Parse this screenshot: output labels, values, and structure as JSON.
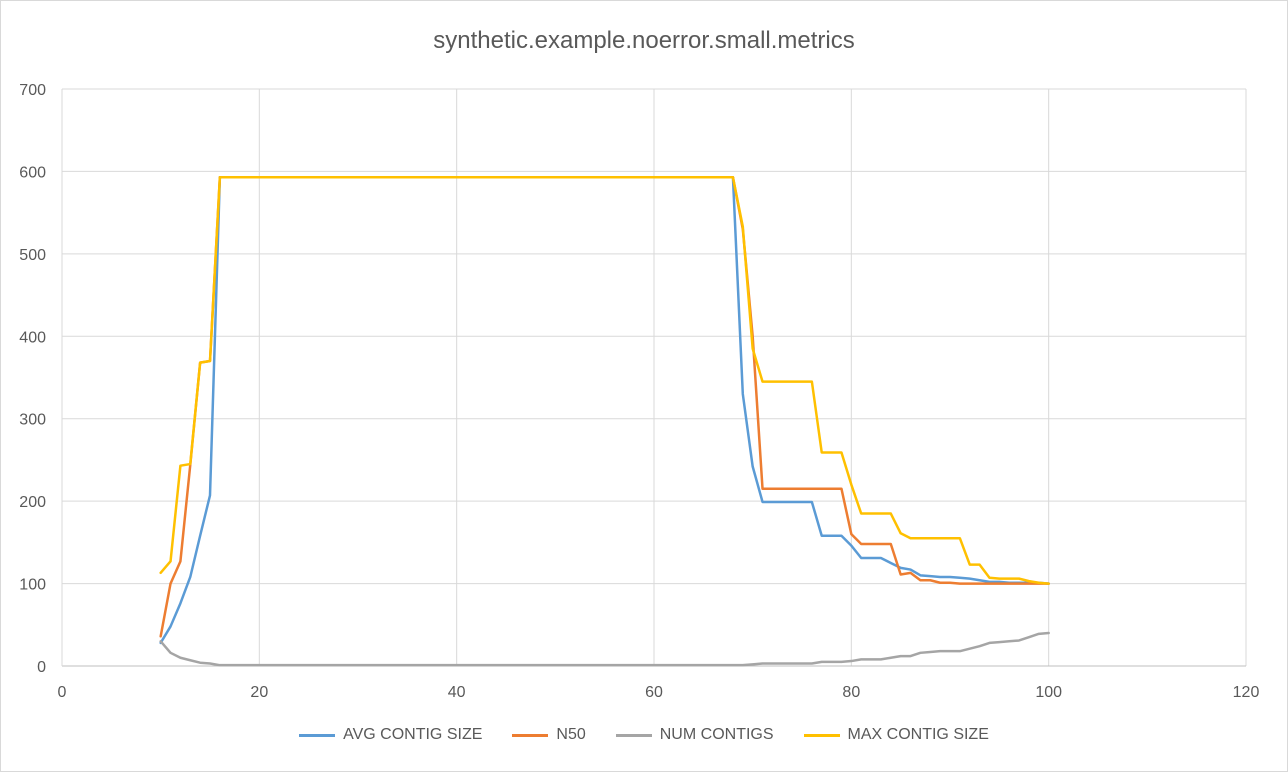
{
  "chart_data": {
    "type": "line",
    "title": "synthetic.example.noerror.small.metrics",
    "xlabel": "",
    "ylabel": "",
    "xlim": [
      0,
      120
    ],
    "ylim": [
      0,
      700
    ],
    "x_ticks": [
      0,
      20,
      40,
      60,
      80,
      100,
      120
    ],
    "y_ticks": [
      0,
      100,
      200,
      300,
      400,
      500,
      600,
      700
    ],
    "grid": true,
    "legend_position": "bottom",
    "series": [
      {
        "name": "AVG CONTIG SIZE",
        "color": "#5b9bd5",
        "points": [
          [
            10,
            28
          ],
          [
            11,
            48
          ],
          [
            12,
            76
          ],
          [
            13,
            108
          ],
          [
            14,
            158
          ],
          [
            15,
            207
          ],
          [
            16,
            593
          ],
          [
            20,
            593
          ],
          [
            30,
            593
          ],
          [
            40,
            593
          ],
          [
            50,
            593
          ],
          [
            60,
            593
          ],
          [
            68,
            593
          ],
          [
            69,
            330
          ],
          [
            70,
            242
          ],
          [
            71,
            199
          ],
          [
            72,
            199
          ],
          [
            73,
            199
          ],
          [
            74,
            199
          ],
          [
            75,
            199
          ],
          [
            76,
            199
          ],
          [
            77,
            158
          ],
          [
            78,
            158
          ],
          [
            79,
            158
          ],
          [
            80,
            146
          ],
          [
            81,
            131
          ],
          [
            82,
            131
          ],
          [
            83,
            131
          ],
          [
            84,
            125
          ],
          [
            85,
            119
          ],
          [
            86,
            117
          ],
          [
            87,
            110
          ],
          [
            88,
            109
          ],
          [
            89,
            108
          ],
          [
            90,
            108
          ],
          [
            91,
            107
          ],
          [
            92,
            106
          ],
          [
            93,
            104
          ],
          [
            94,
            102
          ],
          [
            95,
            102
          ],
          [
            96,
            101
          ],
          [
            97,
            101
          ],
          [
            98,
            101
          ],
          [
            99,
            101
          ],
          [
            100,
            100
          ]
        ]
      },
      {
        "name": "N50",
        "color": "#ed7d31",
        "points": [
          [
            10,
            36
          ],
          [
            11,
            100
          ],
          [
            12,
            127
          ],
          [
            13,
            244
          ],
          [
            14,
            368
          ],
          [
            15,
            370
          ],
          [
            16,
            593
          ],
          [
            20,
            593
          ],
          [
            30,
            593
          ],
          [
            40,
            593
          ],
          [
            50,
            593
          ],
          [
            60,
            593
          ],
          [
            68,
            593
          ],
          [
            69,
            530
          ],
          [
            70,
            400
          ],
          [
            71,
            215
          ],
          [
            72,
            215
          ],
          [
            73,
            215
          ],
          [
            74,
            215
          ],
          [
            75,
            215
          ],
          [
            76,
            215
          ],
          [
            77,
            215
          ],
          [
            78,
            215
          ],
          [
            79,
            215
          ],
          [
            80,
            160
          ],
          [
            81,
            148
          ],
          [
            82,
            148
          ],
          [
            83,
            148
          ],
          [
            84,
            148
          ],
          [
            85,
            111
          ],
          [
            86,
            113
          ],
          [
            87,
            104
          ],
          [
            88,
            104
          ],
          [
            89,
            101
          ],
          [
            90,
            101
          ],
          [
            91,
            100
          ],
          [
            92,
            100
          ],
          [
            93,
            100
          ],
          [
            94,
            100
          ],
          [
            95,
            100
          ],
          [
            96,
            100
          ],
          [
            97,
            100
          ],
          [
            98,
            100
          ],
          [
            99,
            100
          ],
          [
            100,
            100
          ]
        ]
      },
      {
        "name": "NUM CONTIGS",
        "color": "#a5a5a5",
        "points": [
          [
            10,
            30
          ],
          [
            11,
            16
          ],
          [
            12,
            10
          ],
          [
            13,
            7
          ],
          [
            14,
            4
          ],
          [
            15,
            3
          ],
          [
            16,
            1
          ],
          [
            20,
            1
          ],
          [
            30,
            1
          ],
          [
            40,
            1
          ],
          [
            50,
            1
          ],
          [
            60,
            1
          ],
          [
            68,
            1
          ],
          [
            69,
            1
          ],
          [
            70,
            2
          ],
          [
            71,
            3
          ],
          [
            72,
            3
          ],
          [
            73,
            3
          ],
          [
            74,
            3
          ],
          [
            75,
            3
          ],
          [
            76,
            3
          ],
          [
            77,
            5
          ],
          [
            78,
            5
          ],
          [
            79,
            5
          ],
          [
            80,
            6
          ],
          [
            81,
            8
          ],
          [
            82,
            8
          ],
          [
            83,
            8
          ],
          [
            84,
            10
          ],
          [
            85,
            12
          ],
          [
            86,
            12
          ],
          [
            87,
            16
          ],
          [
            88,
            17
          ],
          [
            89,
            18
          ],
          [
            90,
            18
          ],
          [
            91,
            18
          ],
          [
            92,
            21
          ],
          [
            93,
            24
          ],
          [
            94,
            28
          ],
          [
            95,
            29
          ],
          [
            96,
            30
          ],
          [
            97,
            31
          ],
          [
            98,
            35
          ],
          [
            99,
            39
          ],
          [
            100,
            40
          ]
        ]
      },
      {
        "name": "MAX CONTIG SIZE",
        "color": "#ffc000",
        "points": [
          [
            10,
            113
          ],
          [
            11,
            127
          ],
          [
            12,
            243
          ],
          [
            13,
            245
          ],
          [
            14,
            368
          ],
          [
            15,
            370
          ],
          [
            16,
            593
          ],
          [
            20,
            593
          ],
          [
            30,
            593
          ],
          [
            40,
            593
          ],
          [
            50,
            593
          ],
          [
            60,
            593
          ],
          [
            68,
            593
          ],
          [
            69,
            533
          ],
          [
            70,
            385
          ],
          [
            71,
            345
          ],
          [
            72,
            345
          ],
          [
            73,
            345
          ],
          [
            74,
            345
          ],
          [
            75,
            345
          ],
          [
            76,
            345
          ],
          [
            77,
            259
          ],
          [
            78,
            259
          ],
          [
            79,
            259
          ],
          [
            80,
            220
          ],
          [
            81,
            185
          ],
          [
            82,
            185
          ],
          [
            83,
            185
          ],
          [
            84,
            185
          ],
          [
            85,
            161
          ],
          [
            86,
            155
          ],
          [
            87,
            155
          ],
          [
            88,
            155
          ],
          [
            89,
            155
          ],
          [
            90,
            155
          ],
          [
            91,
            155
          ],
          [
            92,
            123
          ],
          [
            93,
            123
          ],
          [
            94,
            107
          ],
          [
            95,
            106
          ],
          [
            96,
            106
          ],
          [
            97,
            106
          ],
          [
            98,
            103
          ],
          [
            99,
            101
          ],
          [
            100,
            100
          ]
        ]
      }
    ]
  }
}
